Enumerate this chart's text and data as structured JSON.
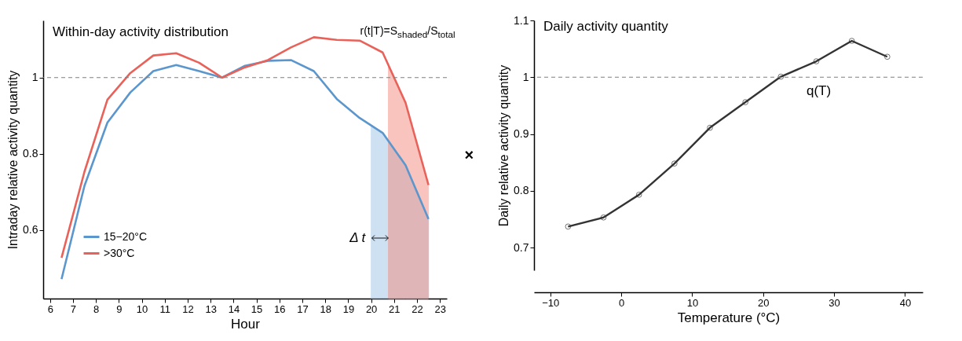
{
  "chart_data": [
    {
      "type": "line",
      "title": "Within-day activity distribution",
      "xlabel": "Hour",
      "ylabel": "Intraday relative activity quantity",
      "x": [
        6.5,
        7.5,
        8.5,
        9.5,
        10.5,
        11.5,
        12.5,
        13.5,
        14.5,
        15.5,
        16.5,
        17.5,
        18.5,
        19.5,
        20.5,
        21.5,
        22.5
      ],
      "series": [
        {
          "type": "area",
          "color": "#9fc5e8",
          "x": [
            20,
            20.5,
            21.5,
            22.5
          ],
          "values": [
            0.874,
            0.855,
            0.77,
            0.629
          ]
        },
        {
          "type": "area",
          "color": "#f28b7d",
          "x": [
            20.75,
            21.5,
            22.5
          ],
          "values": [
            1.033,
            0.934,
            0.718
          ]
        },
        {
          "name": "15−20°C",
          "color": "#5b96cd",
          "values": [
            0.471,
            0.716,
            0.882,
            0.961,
            1.017,
            1.033,
            1.017,
            1.0,
            1.031,
            1.044,
            1.046,
            1.017,
            0.944,
            0.894,
            0.855,
            0.77,
            0.629
          ]
        },
        {
          "name": ">30°C",
          "color": "#e8625a",
          "values": [
            0.527,
            0.753,
            0.942,
            1.012,
            1.058,
            1.064,
            1.039,
            1.0,
            1.027,
            1.046,
            1.079,
            1.106,
            1.099,
            1.097,
            1.066,
            0.934,
            0.718
          ]
        }
      ],
      "xlim": [
        5.7,
        23.3
      ],
      "xticks": [
        6,
        7,
        8,
        9,
        10,
        11,
        12,
        13,
        14,
        15,
        16,
        17,
        18,
        19,
        20,
        21,
        22,
        23
      ],
      "ylim": [
        0.42,
        1.15
      ],
      "yticks": [
        0.6,
        0.8,
        1
      ],
      "ref_lines": [
        {
          "axis": "y",
          "value": 1,
          "color": "#808080",
          "line_style": "dashed"
        }
      ],
      "annotations": [
        "r(t|T)=S$_{shaded}$/S$_{total}$",
        "Δ t",
        "×"
      ],
      "legend": "bottom left",
      "marker": "none",
      "line_style": "solid"
    },
    {
      "type": "line",
      "title": "Daily activity quantity",
      "xlabel": "Temperature (°C)",
      "ylabel": "Daily relative activity quantity",
      "x": [
        -7.5,
        -2.5,
        2.5,
        7.5,
        12.5,
        17.5,
        22.5,
        27.5,
        32.5,
        37.5
      ],
      "series": [
        {
          "color": "#333333",
          "values": [
            0.737,
            0.753,
            0.793,
            0.848,
            0.911,
            0.956,
            1.001,
            1.028,
            1.064,
            1.036
          ]
        }
      ],
      "xlim": [
        -12.3,
        42.5
      ],
      "xticks": [
        -10,
        0,
        10,
        20,
        30,
        40
      ],
      "ylim": [
        0.66,
        1.1
      ],
      "yticks": [
        0.7,
        0.8,
        0.9,
        1,
        1.1
      ],
      "ref_lines": [
        {
          "axis": "y",
          "value": 1,
          "color": "#808080",
          "line_style": "dashed"
        }
      ],
      "annotations": [
        "q(T)"
      ],
      "legend": false,
      "marker": "circle",
      "line_style": "solid"
    }
  ]
}
